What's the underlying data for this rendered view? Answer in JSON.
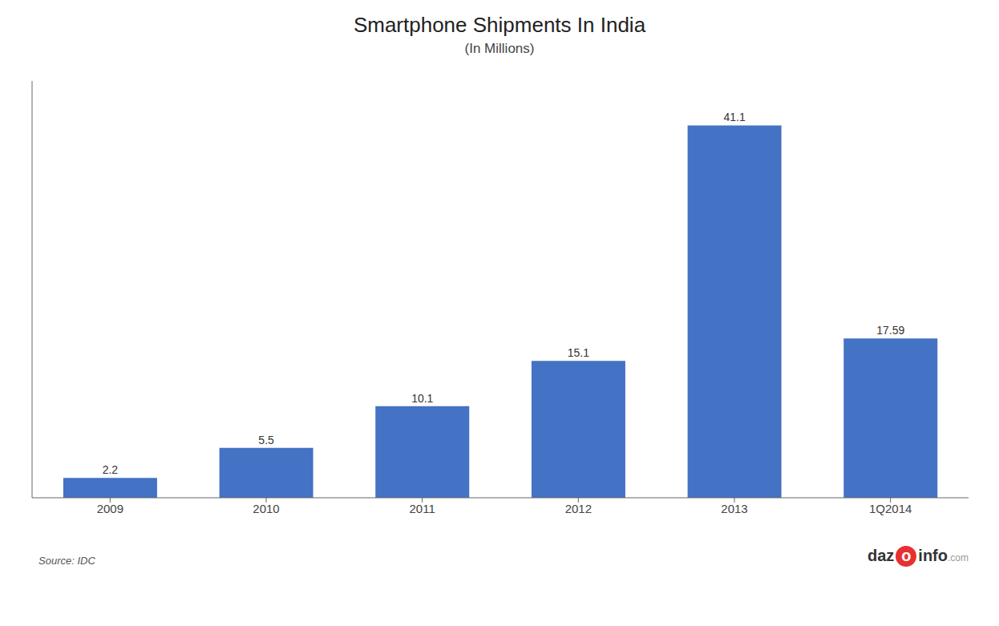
{
  "chart_data": {
    "type": "bar",
    "title": "Smartphone Shipments In India",
    "subtitle": "(In Millions)",
    "categories": [
      "2009",
      "2010",
      "2011",
      "2012",
      "2013",
      "1Q2014"
    ],
    "values": [
      2.2,
      5.5,
      10.1,
      15.1,
      41.1,
      17.59
    ],
    "color": "#4472C4",
    "ylim": [
      0,
      46
    ],
    "data_labels": true,
    "tick_labels": "x",
    "grid": false,
    "annotations": [
      "Source: IDC",
      "daz",
      "o",
      "info",
      ".com"
    ]
  }
}
